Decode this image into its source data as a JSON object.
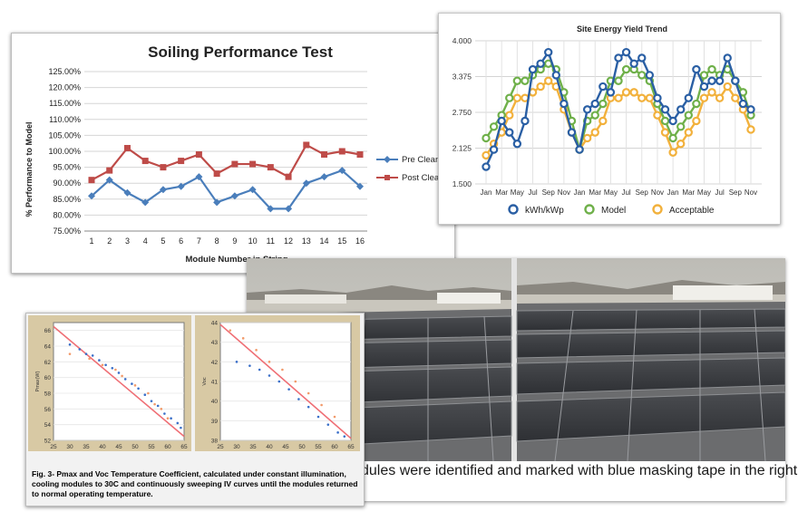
{
  "soiling_chart": {
    "title": "Soiling Performance Test",
    "legend": [
      "Pre Clean",
      "Post Clean"
    ]
  },
  "yield_chart": {
    "title": "Site Energy Yield Trend",
    "legend": [
      "kWh/kWp",
      "Model",
      "Acceptable"
    ]
  },
  "temp_chart": {
    "caption": "Fig. 3-  Pmax and Voc Temperature Coefficient, calculated under constant illumination, cooling modules to 30C and continuously sweeping IV curves until the modules returned to normal operating temperature."
  },
  "photo_panel": {
    "caption": "dules were identified and marked with blue masking tape in the right"
  },
  "colors": {
    "pre_clean": "#4a7ebb",
    "post_clean": "#be4b48",
    "kwh": "#2a5fa4",
    "model": "#6fb04a",
    "acceptable": "#f2b13c",
    "fit_line": "#ef6f75"
  },
  "chart_data": [
    {
      "type": "line",
      "title": "Soiling Performance Test",
      "xlabel": "Module Number in String",
      "ylabel": "% Performance to Model",
      "categories": [
        "1",
        "2",
        "3",
        "4",
        "5",
        "6",
        "7",
        "8",
        "9",
        "10",
        "11",
        "12",
        "13",
        "14",
        "15",
        "16"
      ],
      "y_ticks": [
        "75.00%",
        "80.00%",
        "85.00%",
        "90.00%",
        "95.00%",
        "100.00%",
        "105.00%",
        "110.00%",
        "115.00%",
        "120.00%",
        "125.00%"
      ],
      "ylim": [
        75,
        125
      ],
      "series": [
        {
          "name": "Pre Clean",
          "values": [
            86,
            91,
            87,
            84,
            88,
            89,
            92,
            84,
            86,
            88,
            82,
            82,
            90,
            92,
            94,
            89
          ]
        },
        {
          "name": "Post Clean",
          "values": [
            91,
            94,
            101,
            97,
            95,
            97,
            99,
            93,
            96,
            96,
            95,
            92,
            102,
            99,
            100,
            99
          ]
        }
      ],
      "legend_position": "right",
      "grid": true
    },
    {
      "type": "line",
      "title": "Site Energy Yield Trend",
      "x_ticks": [
        "Jan",
        "Mar",
        "May",
        "Jul",
        "Sep",
        "Nov",
        "Jan",
        "Mar",
        "May",
        "Jul",
        "Sep",
        "Nov",
        "Jan",
        "Mar",
        "May",
        "Jul",
        "Sep",
        "Nov"
      ],
      "y_ticks": [
        "1.500",
        "2.125",
        "2.750",
        "3.375",
        "4.000"
      ],
      "ylim": [
        1.5,
        4.0
      ],
      "series": [
        {
          "name": "kWh/kWp",
          "values": [
            1.8,
            2.1,
            2.6,
            2.4,
            2.2,
            2.6,
            3.5,
            3.6,
            3.8,
            3.4,
            2.9,
            2.4,
            2.1,
            2.8,
            2.9,
            3.2,
            3.1,
            3.7,
            3.8,
            3.6,
            3.7,
            3.4,
            3.0,
            2.8,
            2.6,
            2.8,
            3.0,
            3.5,
            3.2,
            3.3,
            3.3,
            3.7,
            3.3,
            2.9,
            2.8
          ]
        },
        {
          "name": "Model",
          "values": [
            2.3,
            2.5,
            2.7,
            3.0,
            3.3,
            3.3,
            3.4,
            3.5,
            3.6,
            3.5,
            3.1,
            2.6,
            2.1,
            2.6,
            2.7,
            2.9,
            3.3,
            3.3,
            3.5,
            3.5,
            3.4,
            3.3,
            2.9,
            2.6,
            2.3,
            2.5,
            2.7,
            2.9,
            3.4,
            3.5,
            3.4,
            3.5,
            3.3,
            3.1,
            2.7
          ]
        },
        {
          "name": "Acceptable",
          "values": [
            2.0,
            2.2,
            2.4,
            2.7,
            3.0,
            3.0,
            3.1,
            3.2,
            3.3,
            3.2,
            2.8,
            2.4,
            2.1,
            2.3,
            2.4,
            2.6,
            3.0,
            3.0,
            3.1,
            3.1,
            3.0,
            3.0,
            2.7,
            2.4,
            2.05,
            2.2,
            2.4,
            2.6,
            3.0,
            3.1,
            3.0,
            3.2,
            3.0,
            2.8,
            2.45
          ]
        }
      ],
      "legend_position": "bottom",
      "grid": true
    },
    {
      "type": "scatter",
      "ylabel": "Pmax(W)",
      "x_ticks": [
        "25",
        "30",
        "35",
        "40",
        "45",
        "50",
        "55",
        "60",
        "65"
      ],
      "y_ticks": [
        "52",
        "54",
        "56",
        "58",
        "60",
        "62",
        "64",
        "66"
      ],
      "xlim": [
        25,
        65
      ],
      "ylim": [
        52,
        67
      ],
      "series": [
        {
          "name": "",
          "x": [
            30,
            33,
            35,
            37,
            39,
            41,
            43,
            45,
            47,
            49,
            51,
            53,
            55,
            57,
            59,
            61,
            63,
            64
          ],
          "y": [
            64.2,
            63.6,
            63.0,
            62.8,
            62.2,
            61.6,
            61.2,
            60.6,
            59.8,
            59.2,
            58.6,
            57.8,
            57.0,
            56.4,
            55.4,
            54.8,
            54.2,
            53.6
          ]
        },
        {
          "name": "",
          "x": [
            30,
            36,
            40,
            44,
            46,
            50,
            54,
            56,
            58,
            60
          ],
          "y": [
            63.0,
            62.4,
            61.6,
            61.0,
            60.2,
            59.0,
            58.0,
            56.6,
            56.0,
            54.8
          ]
        }
      ],
      "fit_line": {
        "x": [
          25,
          65
        ],
        "y": [
          66.5,
          52.5
        ]
      }
    },
    {
      "type": "scatter",
      "ylabel": "Voc",
      "x_ticks": [
        "25",
        "30",
        "35",
        "40",
        "45",
        "50",
        "55",
        "60",
        "65"
      ],
      "y_ticks": [
        "38",
        "39",
        "40",
        "41",
        "42",
        "43",
        "44"
      ],
      "xlim": [
        25,
        65
      ],
      "ylim": [
        38,
        44
      ],
      "series": [
        {
          "name": "",
          "x": [
            30,
            34,
            37,
            40,
            43,
            46,
            49,
            52,
            55,
            58,
            61,
            63
          ],
          "y": [
            42.0,
            41.8,
            41.6,
            41.3,
            41.0,
            40.6,
            40.1,
            39.7,
            39.2,
            38.8,
            38.4,
            38.2
          ]
        },
        {
          "name": "",
          "x": [
            28,
            32,
            36,
            40,
            44,
            48,
            52,
            56,
            60
          ],
          "y": [
            43.6,
            43.2,
            42.6,
            42.0,
            41.6,
            41.0,
            40.4,
            39.8,
            39.2
          ]
        }
      ],
      "fit_line": {
        "x": [
          25,
          65
        ],
        "y": [
          43.9,
          38.1
        ]
      }
    }
  ]
}
